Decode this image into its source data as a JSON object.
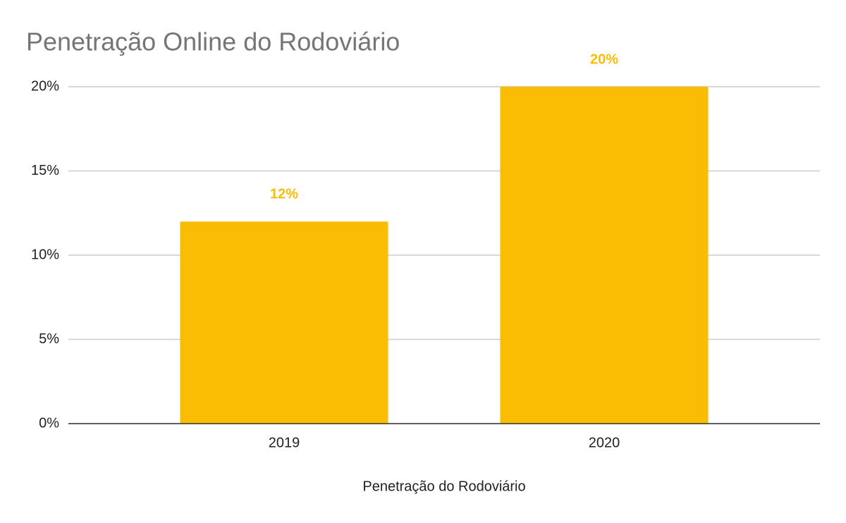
{
  "chart_data": {
    "type": "bar",
    "title": "Penetração Online do Rodoviário",
    "x_label": "Penetração do Rodoviário",
    "categories": [
      "2019",
      "2020"
    ],
    "values": [
      12,
      20
    ],
    "value_labels": [
      "12%",
      "20%"
    ],
    "color": "#fbbc04",
    "ylim": [
      0,
      20
    ],
    "yticks": [
      {
        "value": 0,
        "label": "0%"
      },
      {
        "value": 5,
        "label": "5%"
      },
      {
        "value": 10,
        "label": "10%"
      },
      {
        "value": 15,
        "label": "15%"
      },
      {
        "value": 20,
        "label": "20%"
      }
    ],
    "grid": true
  }
}
